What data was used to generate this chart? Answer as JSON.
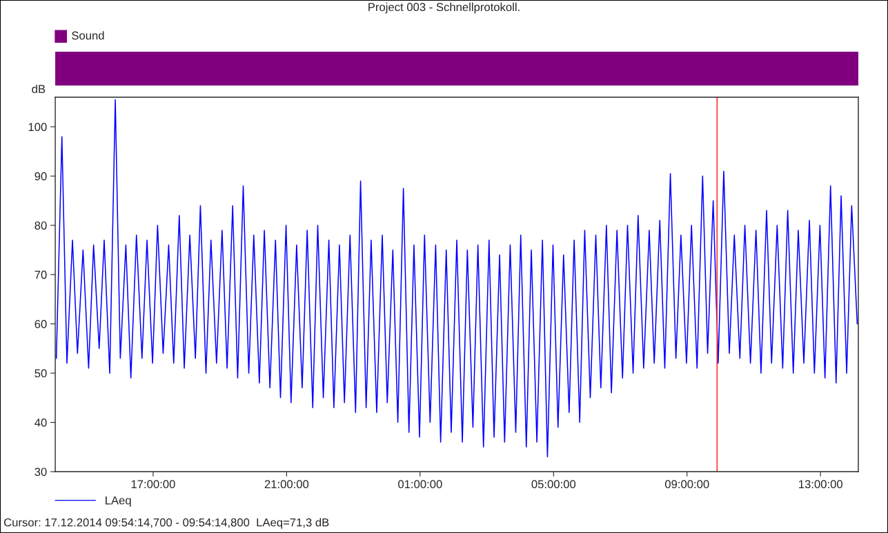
{
  "chart_data": {
    "type": "line",
    "title": "Project 003 - Schnellprotokoll.",
    "ylabel": "dB",
    "annotations": [
      "Sound",
      "Cursor: 17.12.2014 09:54:14,700 - 09:54:14,800  LAeq=71,3 dB"
    ],
    "x": [
      "2014-12-16T14:06",
      "2014-12-16T14:16",
      "2014-12-16T14:25",
      "2014-12-16T14:35",
      "2014-12-16T14:44",
      "2014-12-16T14:54",
      "2014-12-16T15:04",
      "2014-12-16T15:13",
      "2014-12-16T15:23",
      "2014-12-16T15:32",
      "2014-12-16T15:42",
      "2014-12-16T15:52",
      "2014-12-16T16:01",
      "2014-12-16T16:11",
      "2014-12-16T16:20",
      "2014-12-16T16:30",
      "2014-12-16T16:40",
      "2014-12-16T16:49",
      "2014-12-16T16:59",
      "2014-12-16T17:08",
      "2014-12-16T17:18",
      "2014-12-16T17:28",
      "2014-12-16T17:37",
      "2014-12-16T17:47",
      "2014-12-16T17:56",
      "2014-12-16T18:06",
      "2014-12-16T18:16",
      "2014-12-16T18:25",
      "2014-12-16T18:35",
      "2014-12-16T18:44",
      "2014-12-16T18:54",
      "2014-12-16T19:04",
      "2014-12-16T19:13",
      "2014-12-16T19:23",
      "2014-12-16T19:32",
      "2014-12-16T19:42",
      "2014-12-16T19:52",
      "2014-12-16T20:01",
      "2014-12-16T20:11",
      "2014-12-16T20:20",
      "2014-12-16T20:30",
      "2014-12-16T20:40",
      "2014-12-16T20:49",
      "2014-12-16T20:59",
      "2014-12-16T21:08",
      "2014-12-16T21:18",
      "2014-12-16T21:28",
      "2014-12-16T21:37",
      "2014-12-16T21:47",
      "2014-12-16T21:56",
      "2014-12-16T22:06",
      "2014-12-16T22:16",
      "2014-12-16T22:25",
      "2014-12-16T22:35",
      "2014-12-16T22:44",
      "2014-12-16T22:54",
      "2014-12-16T23:04",
      "2014-12-16T23:13",
      "2014-12-16T23:23",
      "2014-12-16T23:32",
      "2014-12-16T23:42",
      "2014-12-16T23:52",
      "2014-12-17T00:01",
      "2014-12-17T00:11",
      "2014-12-17T00:20",
      "2014-12-17T00:30",
      "2014-12-17T00:40",
      "2014-12-17T00:49",
      "2014-12-17T00:59",
      "2014-12-17T01:08",
      "2014-12-17T01:18",
      "2014-12-17T01:28",
      "2014-12-17T01:37",
      "2014-12-17T01:47",
      "2014-12-17T01:56",
      "2014-12-17T02:06",
      "2014-12-17T02:16",
      "2014-12-17T02:25",
      "2014-12-17T02:35",
      "2014-12-17T02:44",
      "2014-12-17T02:54",
      "2014-12-17T03:04",
      "2014-12-17T03:13",
      "2014-12-17T03:23",
      "2014-12-17T03:32",
      "2014-12-17T03:42",
      "2014-12-17T03:52",
      "2014-12-17T04:01",
      "2014-12-17T04:11",
      "2014-12-17T04:20",
      "2014-12-17T04:30",
      "2014-12-17T04:40",
      "2014-12-17T04:49",
      "2014-12-17T04:59",
      "2014-12-17T05:08",
      "2014-12-17T05:18",
      "2014-12-17T05:28",
      "2014-12-17T05:37",
      "2014-12-17T05:47",
      "2014-12-17T05:56",
      "2014-12-17T06:06",
      "2014-12-17T06:16",
      "2014-12-17T06:25",
      "2014-12-17T06:35",
      "2014-12-17T06:44",
      "2014-12-17T06:54",
      "2014-12-17T07:04",
      "2014-12-17T07:13",
      "2014-12-17T07:23",
      "2014-12-17T07:32",
      "2014-12-17T07:42",
      "2014-12-17T07:52",
      "2014-12-17T08:01",
      "2014-12-17T08:11",
      "2014-12-17T08:20",
      "2014-12-17T08:30",
      "2014-12-17T08:40",
      "2014-12-17T08:49",
      "2014-12-17T08:59",
      "2014-12-17T09:08",
      "2014-12-17T09:18",
      "2014-12-17T09:28",
      "2014-12-17T09:37",
      "2014-12-17T09:47",
      "2014-12-17T09:56",
      "2014-12-17T10:06",
      "2014-12-17T10:16",
      "2014-12-17T10:25",
      "2014-12-17T10:35",
      "2014-12-17T10:44",
      "2014-12-17T10:54",
      "2014-12-17T11:04",
      "2014-12-17T11:13",
      "2014-12-17T11:23",
      "2014-12-17T11:32",
      "2014-12-17T11:42",
      "2014-12-17T11:52",
      "2014-12-17T12:01",
      "2014-12-17T12:11",
      "2014-12-17T12:20",
      "2014-12-17T12:30",
      "2014-12-17T12:40",
      "2014-12-17T12:49",
      "2014-12-17T12:59",
      "2014-12-17T13:08",
      "2014-12-17T13:18",
      "2014-12-17T13:28",
      "2014-12-17T13:37",
      "2014-12-17T13:47",
      "2014-12-17T13:56",
      "2014-12-17T14:06"
    ],
    "series": [
      {
        "name": "LAeq",
        "color": "#0000ff",
        "values": [
          53,
          98,
          52,
          77,
          54,
          75,
          51,
          76,
          55,
          77,
          50,
          105.5,
          53,
          76,
          49,
          78,
          53,
          77,
          52,
          80,
          54,
          76,
          52,
          82,
          51,
          78,
          53,
          84,
          50,
          77,
          52,
          79,
          51,
          84,
          49,
          88,
          50,
          78,
          48,
          79,
          47,
          77,
          45,
          80,
          44,
          76,
          47,
          79,
          43,
          80,
          45,
          77,
          43,
          76,
          44,
          78,
          42,
          89,
          43,
          77,
          42,
          78,
          44,
          75,
          40,
          87.5,
          38,
          76,
          37,
          78,
          40,
          76,
          36,
          75,
          38,
          77,
          36,
          75,
          39,
          76,
          35,
          77,
          37,
          74,
          36,
          76,
          38,
          78,
          35,
          75,
          36,
          77,
          33,
          76,
          39,
          74,
          42,
          77,
          40,
          79,
          45,
          78,
          47,
          80,
          46,
          79,
          49,
          80,
          50,
          82,
          51,
          79,
          52,
          81,
          51,
          90.5,
          53,
          78,
          52,
          80,
          51,
          90,
          54,
          85,
          52,
          91,
          54,
          78,
          53,
          80,
          52,
          79,
          50,
          83,
          52,
          80,
          51,
          83,
          50,
          79,
          52,
          81,
          50,
          80,
          49,
          88,
          48,
          86,
          50,
          84,
          60
        ]
      }
    ],
    "xlim": [
      "2014-12-16T14:04",
      "2014-12-17T14:08"
    ],
    "ylim": [
      30,
      106
    ],
    "xticks": [
      {
        "value": "2014-12-16T17:00",
        "label": "17:00:00"
      },
      {
        "value": "2014-12-16T21:00",
        "label": "21:00:00"
      },
      {
        "value": "2014-12-17T01:00",
        "label": "01:00:00"
      },
      {
        "value": "2014-12-17T05:00",
        "label": "05:00:00"
      },
      {
        "value": "2014-12-17T09:00",
        "label": "09:00:00"
      },
      {
        "value": "2014-12-17T13:00",
        "label": "13:00:00"
      }
    ],
    "yticks": [
      30,
      40,
      50,
      60,
      70,
      80,
      90,
      100
    ],
    "ref_lines": [
      {
        "axis": "x",
        "value": "2014-12-17T09:54",
        "color": "#ff3333"
      }
    ],
    "legend": "bottom left",
    "marker": "none",
    "line_style": "solid"
  }
}
